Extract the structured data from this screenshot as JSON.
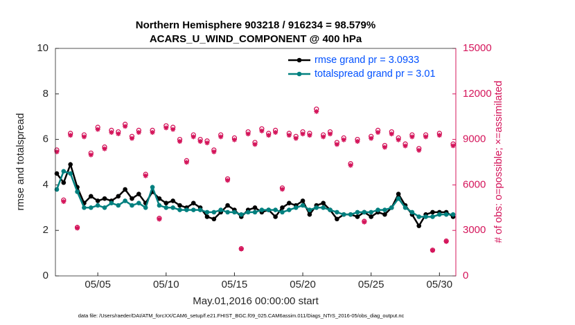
{
  "chart_data": {
    "type": "line",
    "title": [
      "Northern Hemisphere 903218 / 916234 = 98.579%",
      "ACARS_U_WIND_COMPONENT @ 400 hPa"
    ],
    "x_label": "May.01,2016 00:00:00 start",
    "y_label": "rmse and totalspread",
    "y2_label": "# of obs: o=possible; ×=assimilated",
    "footer": "data file: /Users/raeder/DAI/ATM_forcXX/CAM6_setup/f.e21.FHIST_BGC.f09_025.CAM6assim.011/Diags_NTrS_2016-05/obs_diag_output.nc",
    "x": [
      2,
      2.5,
      3,
      3.5,
      4,
      4.5,
      5,
      5.5,
      6,
      6.5,
      7,
      7.5,
      8,
      8.5,
      9,
      9.5,
      10,
      10.5,
      11,
      11.5,
      12,
      12.5,
      13,
      13.5,
      14,
      14.5,
      15,
      15.5,
      16,
      16.5,
      17,
      17.5,
      18,
      18.5,
      19,
      19.5,
      20,
      20.5,
      21,
      21.5,
      22,
      22.5,
      23,
      23.5,
      24,
      24.5,
      25,
      25.5,
      26,
      26.5,
      27,
      27.5,
      28,
      28.5,
      29,
      29.5,
      30,
      30.5,
      31
    ],
    "xlim": [
      1.9,
      31.2
    ],
    "xticks": [
      {
        "value": 5,
        "label": "05/05"
      },
      {
        "value": 10,
        "label": "05/10"
      },
      {
        "value": 15,
        "label": "05/15"
      },
      {
        "value": 20,
        "label": "05/20"
      },
      {
        "value": 25,
        "label": "05/25"
      },
      {
        "value": 30,
        "label": "05/30"
      }
    ],
    "ylim": [
      0,
      10
    ],
    "yticks": [
      0,
      2,
      4,
      6,
      8,
      10
    ],
    "y2lim": [
      0,
      15000
    ],
    "y2ticks": [
      0,
      3000,
      6000,
      9000,
      12000,
      15000
    ],
    "y2color": "#d4145a",
    "legend": "upper right",
    "series": [
      {
        "name": "rmse grand pr = 3.0933",
        "color": "#000000",
        "marker": "dot",
        "values": [
          4.5,
          4.1,
          4.9,
          3.9,
          3.2,
          3.5,
          3.3,
          3.4,
          3.3,
          3.5,
          3.8,
          3.4,
          3.6,
          3.2,
          3.7,
          3.4,
          3.2,
          3.3,
          3.1,
          3.0,
          3.2,
          3.0,
          2.6,
          2.5,
          2.8,
          3.1,
          2.9,
          2.6,
          2.9,
          3.0,
          2.8,
          2.9,
          2.6,
          3.0,
          3.2,
          3.1,
          3.3,
          2.7,
          3.1,
          3.2,
          2.9,
          2.5,
          2.7,
          2.7,
          2.6,
          2.8,
          2.6,
          2.8,
          2.7,
          3.0,
          3.6,
          3.1,
          2.7,
          2.2,
          2.7,
          2.8,
          2.8,
          2.8,
          2.6
        ]
      },
      {
        "name": "totalspread grand pr = 3.01",
        "color": "#00807f",
        "marker": "dot",
        "values": [
          3.8,
          4.6,
          4.5,
          3.7,
          3.0,
          3.0,
          3.1,
          3.0,
          3.2,
          3.1,
          3.3,
          3.1,
          3.2,
          3.0,
          3.9,
          3.1,
          3.0,
          3.0,
          2.9,
          2.9,
          2.9,
          2.9,
          2.8,
          2.8,
          2.9,
          2.8,
          2.8,
          2.7,
          2.8,
          2.8,
          2.9,
          2.9,
          2.9,
          2.8,
          2.9,
          3.0,
          3.1,
          2.9,
          3.0,
          3.0,
          2.9,
          2.8,
          2.7,
          2.7,
          2.8,
          2.8,
          2.8,
          2.9,
          2.9,
          3.0,
          3.4,
          3.0,
          2.8,
          2.6,
          2.6,
          2.6,
          2.7,
          2.7,
          2.7
        ]
      },
      {
        "axis": "y2",
        "color": "#d4145a",
        "marker": "o",
        "values": [
          8300,
          5000,
          9400,
          3200,
          9300,
          8100,
          9800,
          8500,
          9600,
          9500,
          10000,
          9200,
          9600,
          6700,
          9600,
          3800,
          9900,
          9800,
          9000,
          7600,
          9300,
          9000,
          8900,
          8300,
          9300,
          6400,
          9100,
          1800,
          9500,
          8800,
          9700,
          9400,
          9600,
          5800,
          9400,
          9200,
          9500,
          9400,
          11000,
          9300,
          9500,
          8800,
          9100,
          7400,
          9000,
          3600,
          9200,
          9600,
          8600,
          9500,
          9100,
          8700,
          9300,
          8400,
          9300,
          1700,
          9400,
          2300,
          8700
        ]
      },
      {
        "axis": "y2",
        "color": "#d4145a",
        "marker": "*",
        "values": [
          8180,
          4900,
          9270,
          3150,
          9170,
          7980,
          9660,
          8380,
          9460,
          9370,
          9860,
          9070,
          9460,
          6600,
          9460,
          3740,
          9760,
          9660,
          8870,
          7490,
          9170,
          8870,
          8770,
          8180,
          9170,
          6300,
          8970,
          1770,
          9360,
          8670,
          9560,
          9270,
          9460,
          5710,
          9270,
          9070,
          9360,
          9270,
          10840,
          9170,
          9360,
          8670,
          8970,
          7290,
          8870,
          3550,
          9070,
          9460,
          8480,
          9360,
          8970,
          8570,
          9170,
          8280,
          9170,
          1680,
          9270,
          2270,
          8580
        ]
      }
    ]
  }
}
